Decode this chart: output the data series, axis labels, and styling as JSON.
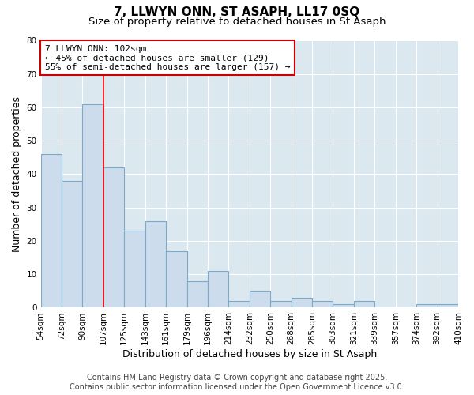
{
  "title": "7, LLWYN ONN, ST ASAPH, LL17 0SQ",
  "subtitle": "Size of property relative to detached houses in St Asaph",
  "xlabel": "Distribution of detached houses by size in St Asaph",
  "ylabel": "Number of detached properties",
  "bin_labels": [
    "54sqm",
    "72sqm",
    "90sqm",
    "107sqm",
    "125sqm",
    "143sqm",
    "161sqm",
    "179sqm",
    "196sqm",
    "214sqm",
    "232sqm",
    "250sqm",
    "268sqm",
    "285sqm",
    "303sqm",
    "321sqm",
    "339sqm",
    "357sqm",
    "374sqm",
    "392sqm",
    "410sqm"
  ],
  "bar_values": [
    46,
    38,
    61,
    42,
    23,
    26,
    17,
    8,
    11,
    2,
    5,
    2,
    3,
    2,
    1,
    2,
    0,
    0,
    1,
    1
  ],
  "bar_color": "#ccdcec",
  "bar_edge_color": "#7aaac8",
  "red_line_bin": 3,
  "annotation_line1": "7 LLWYN ONN: 102sqm",
  "annotation_line2": "← 45% of detached houses are smaller (129)",
  "annotation_line3": "55% of semi-detached houses are larger (157) →",
  "annotation_box_facecolor": "#ffffff",
  "annotation_box_edgecolor": "#cc0000",
  "ylim": [
    0,
    80
  ],
  "yticks": [
    0,
    10,
    20,
    30,
    40,
    50,
    60,
    70,
    80
  ],
  "footer_line1": "Contains HM Land Registry data © Crown copyright and database right 2025.",
  "footer_line2": "Contains public sector information licensed under the Open Government Licence v3.0.",
  "fig_facecolor": "#ffffff",
  "plot_facecolor": "#dce8f0",
  "grid_color": "#ffffff",
  "title_fontsize": 11,
  "subtitle_fontsize": 9.5,
  "axis_label_fontsize": 9,
  "tick_fontsize": 7.5,
  "annotation_fontsize": 8,
  "footer_fontsize": 7
}
